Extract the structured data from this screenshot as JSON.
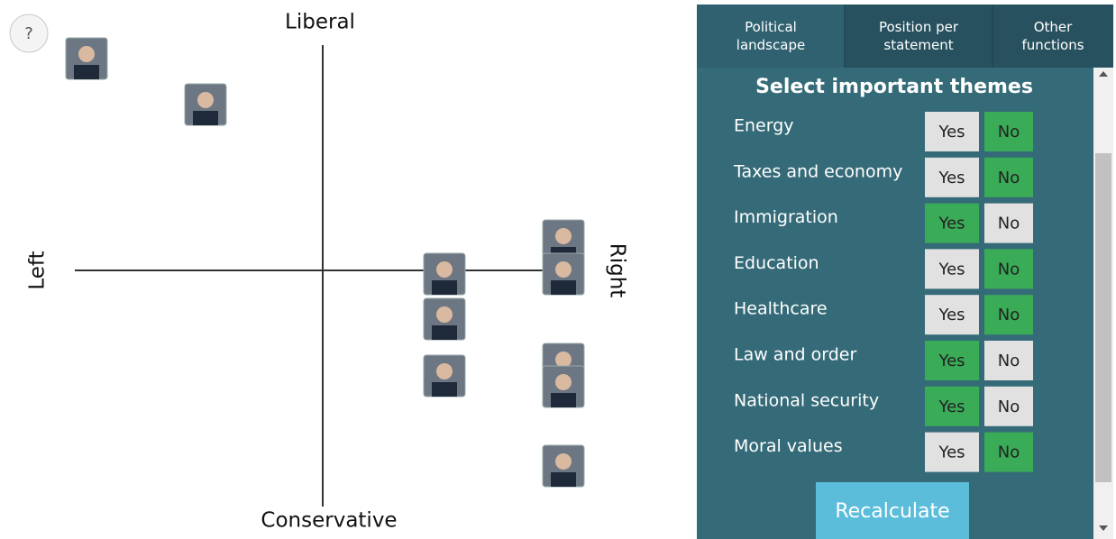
{
  "help_button": "?",
  "landscape": {
    "top_label": "Liberal",
    "bottom_label": "Conservative",
    "left_label": "Left",
    "right_label": "Right"
  },
  "tabs": [
    "Political landscape",
    "Position per statement",
    "Other functions"
  ],
  "panel": {
    "title": "Select important themes",
    "options": [
      "Yes",
      "No"
    ],
    "themes": [
      {
        "name": "Energy",
        "important": false
      },
      {
        "name": "Taxes and economy",
        "important": false
      },
      {
        "name": "Immigration",
        "important": true
      },
      {
        "name": "Education",
        "important": false
      },
      {
        "name": "Healthcare",
        "important": false
      },
      {
        "name": "Law and order",
        "important": true
      },
      {
        "name": "National security",
        "important": true
      },
      {
        "name": "Moral values",
        "important": false
      }
    ],
    "button": "Recalculate"
  }
}
